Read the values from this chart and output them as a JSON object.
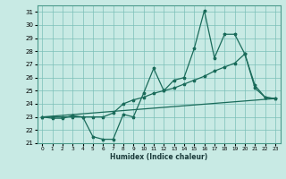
{
  "xlabel": "Humidex (Indice chaleur)",
  "bg_color": "#c8eae4",
  "grid_color": "#7bbfb8",
  "line_color": "#1a6b5a",
  "xlim": [
    -0.5,
    23.5
  ],
  "ylim": [
    21.0,
    31.5
  ],
  "xticks": [
    0,
    1,
    2,
    3,
    4,
    5,
    6,
    7,
    8,
    9,
    10,
    11,
    12,
    13,
    14,
    15,
    16,
    17,
    18,
    19,
    20,
    21,
    22,
    23
  ],
  "yticks": [
    21,
    22,
    23,
    24,
    25,
    26,
    27,
    28,
    29,
    30,
    31
  ],
  "series1_x": [
    0,
    1,
    2,
    3,
    4,
    5,
    6,
    7,
    8,
    9,
    10,
    11,
    12,
    13,
    14,
    15,
    16,
    17,
    18,
    19,
    20,
    21,
    22,
    23
  ],
  "series1_y": [
    23,
    23,
    23,
    23,
    23,
    21.5,
    21.3,
    21.3,
    23.2,
    23,
    24.8,
    26.7,
    25,
    25.8,
    26,
    28.2,
    31.1,
    27.5,
    29.3,
    29.3,
    27.8,
    25.4,
    24.5,
    24.4
  ],
  "series2_x": [
    0,
    1,
    2,
    3,
    4,
    5,
    6,
    7,
    8,
    9,
    10,
    11,
    12,
    13,
    14,
    15,
    16,
    17,
    18,
    19,
    20,
    21,
    22,
    23
  ],
  "series2_y": [
    23,
    22.9,
    22.9,
    23.1,
    23,
    23,
    23,
    23.3,
    24,
    24.3,
    24.5,
    24.8,
    25.0,
    25.2,
    25.5,
    25.8,
    26.1,
    26.5,
    26.8,
    27.1,
    27.8,
    25.2,
    24.5,
    24.4
  ],
  "series3_x": [
    0,
    23
  ],
  "series3_y": [
    23.0,
    24.4
  ]
}
